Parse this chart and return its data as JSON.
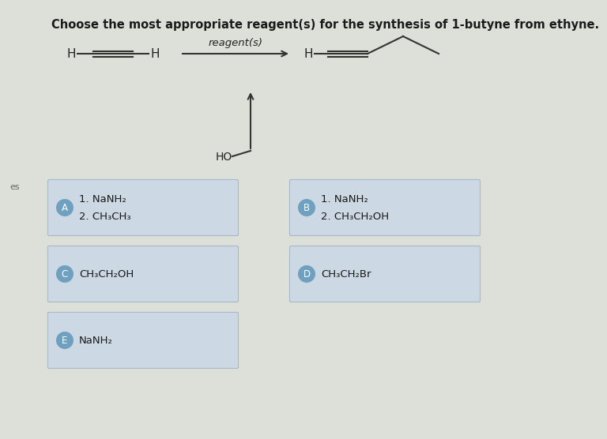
{
  "title": "Choose the most appropriate reagent(s) for the synthesis of 1-butyne from ethyne.",
  "bg_color": "#dde0d8",
  "reaction_label": "reagent(s)",
  "choices": [
    {
      "letter": "A",
      "line1": "1. NaNH₂",
      "line2": "2. CH₃CH₃"
    },
    {
      "letter": "B",
      "line1": "1. NaNH₂",
      "line2": "2. CH₃CH₂OH"
    },
    {
      "letter": "C",
      "line1": "CH₃CH₂OH",
      "line2": ""
    },
    {
      "letter": "D",
      "line1": "CH₃CH₂Br",
      "line2": ""
    },
    {
      "letter": "E",
      "line1": "NaNH₂",
      "line2": ""
    }
  ],
  "box_bg": "#ccd8e4",
  "box_border": "#aab8c8",
  "circle_bg": "#6fa0c0",
  "circle_fg": "#ffffff",
  "text_color": "#1a1a1a",
  "title_fontsize": 10.5,
  "label_fontsize": 9.5,
  "choice_fontsize": 9.5,
  "circle_fontsize": 8.5
}
